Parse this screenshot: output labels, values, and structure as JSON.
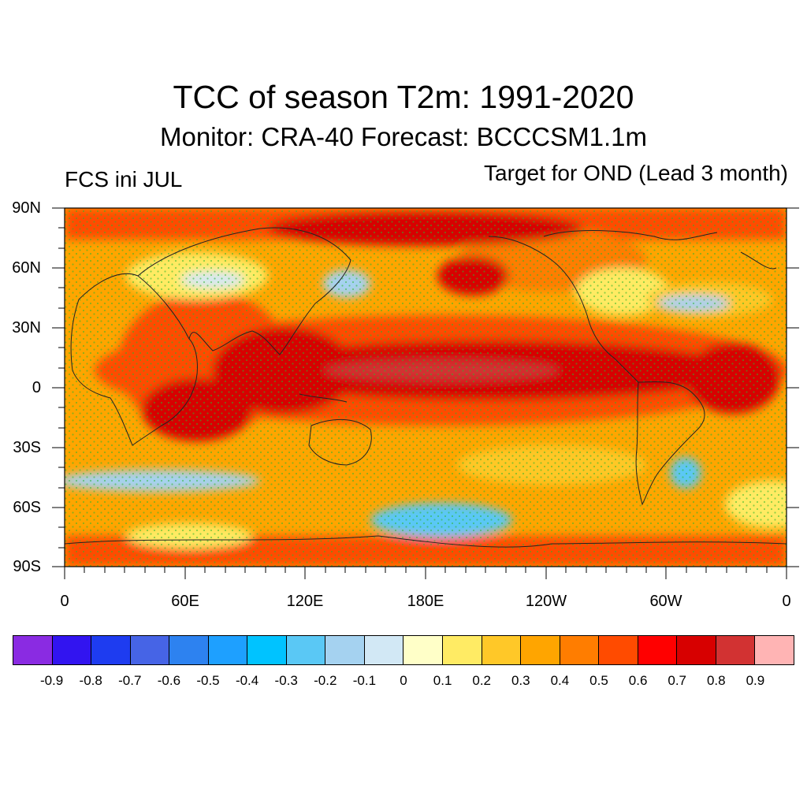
{
  "title": "TCC of season T2m: 1991-2020",
  "subtitle": "Monitor: CRA-40   Forecast: BCCCSM1.1m",
  "left_label": "FCS ini JUL",
  "right_label": "Target for OND (Lead 3 month)",
  "map": {
    "projection": "cylindrical equidistant",
    "lon_range": [
      0,
      360
    ],
    "lat_range": [
      -90,
      90
    ],
    "y_tick_labels": [
      "90N",
      "60N",
      "30N",
      "0",
      "30S",
      "60S",
      "90S"
    ],
    "x_tick_labels": [
      "0",
      "60E",
      "120E",
      "180E",
      "120W",
      "60W",
      "0"
    ],
    "stipple_color": "#2bb52b",
    "coastline_color": "#222222"
  },
  "colorbar": {
    "colors": [
      "#8a2be2",
      "#3214f0",
      "#1e3cf0",
      "#4664e6",
      "#2d82f0",
      "#1ea0ff",
      "#00c3ff",
      "#5ac8f5",
      "#a5d2f0",
      "#d2e8f5",
      "#ffffc8",
      "#ffeb64",
      "#ffc828",
      "#ffa500",
      "#ff7d00",
      "#ff4b00",
      "#ff0000",
      "#d70000",
      "#d23232",
      "#ffb4b4"
    ],
    "labels": [
      "-0.9",
      "-0.8",
      "-0.7",
      "-0.6",
      "-0.5",
      "-0.4",
      "-0.3",
      "-0.2",
      "-0.1",
      "0",
      "0.1",
      "0.2",
      "0.3",
      "0.4",
      "0.5",
      "0.6",
      "0.7",
      "0.8",
      "0.9"
    ]
  }
}
